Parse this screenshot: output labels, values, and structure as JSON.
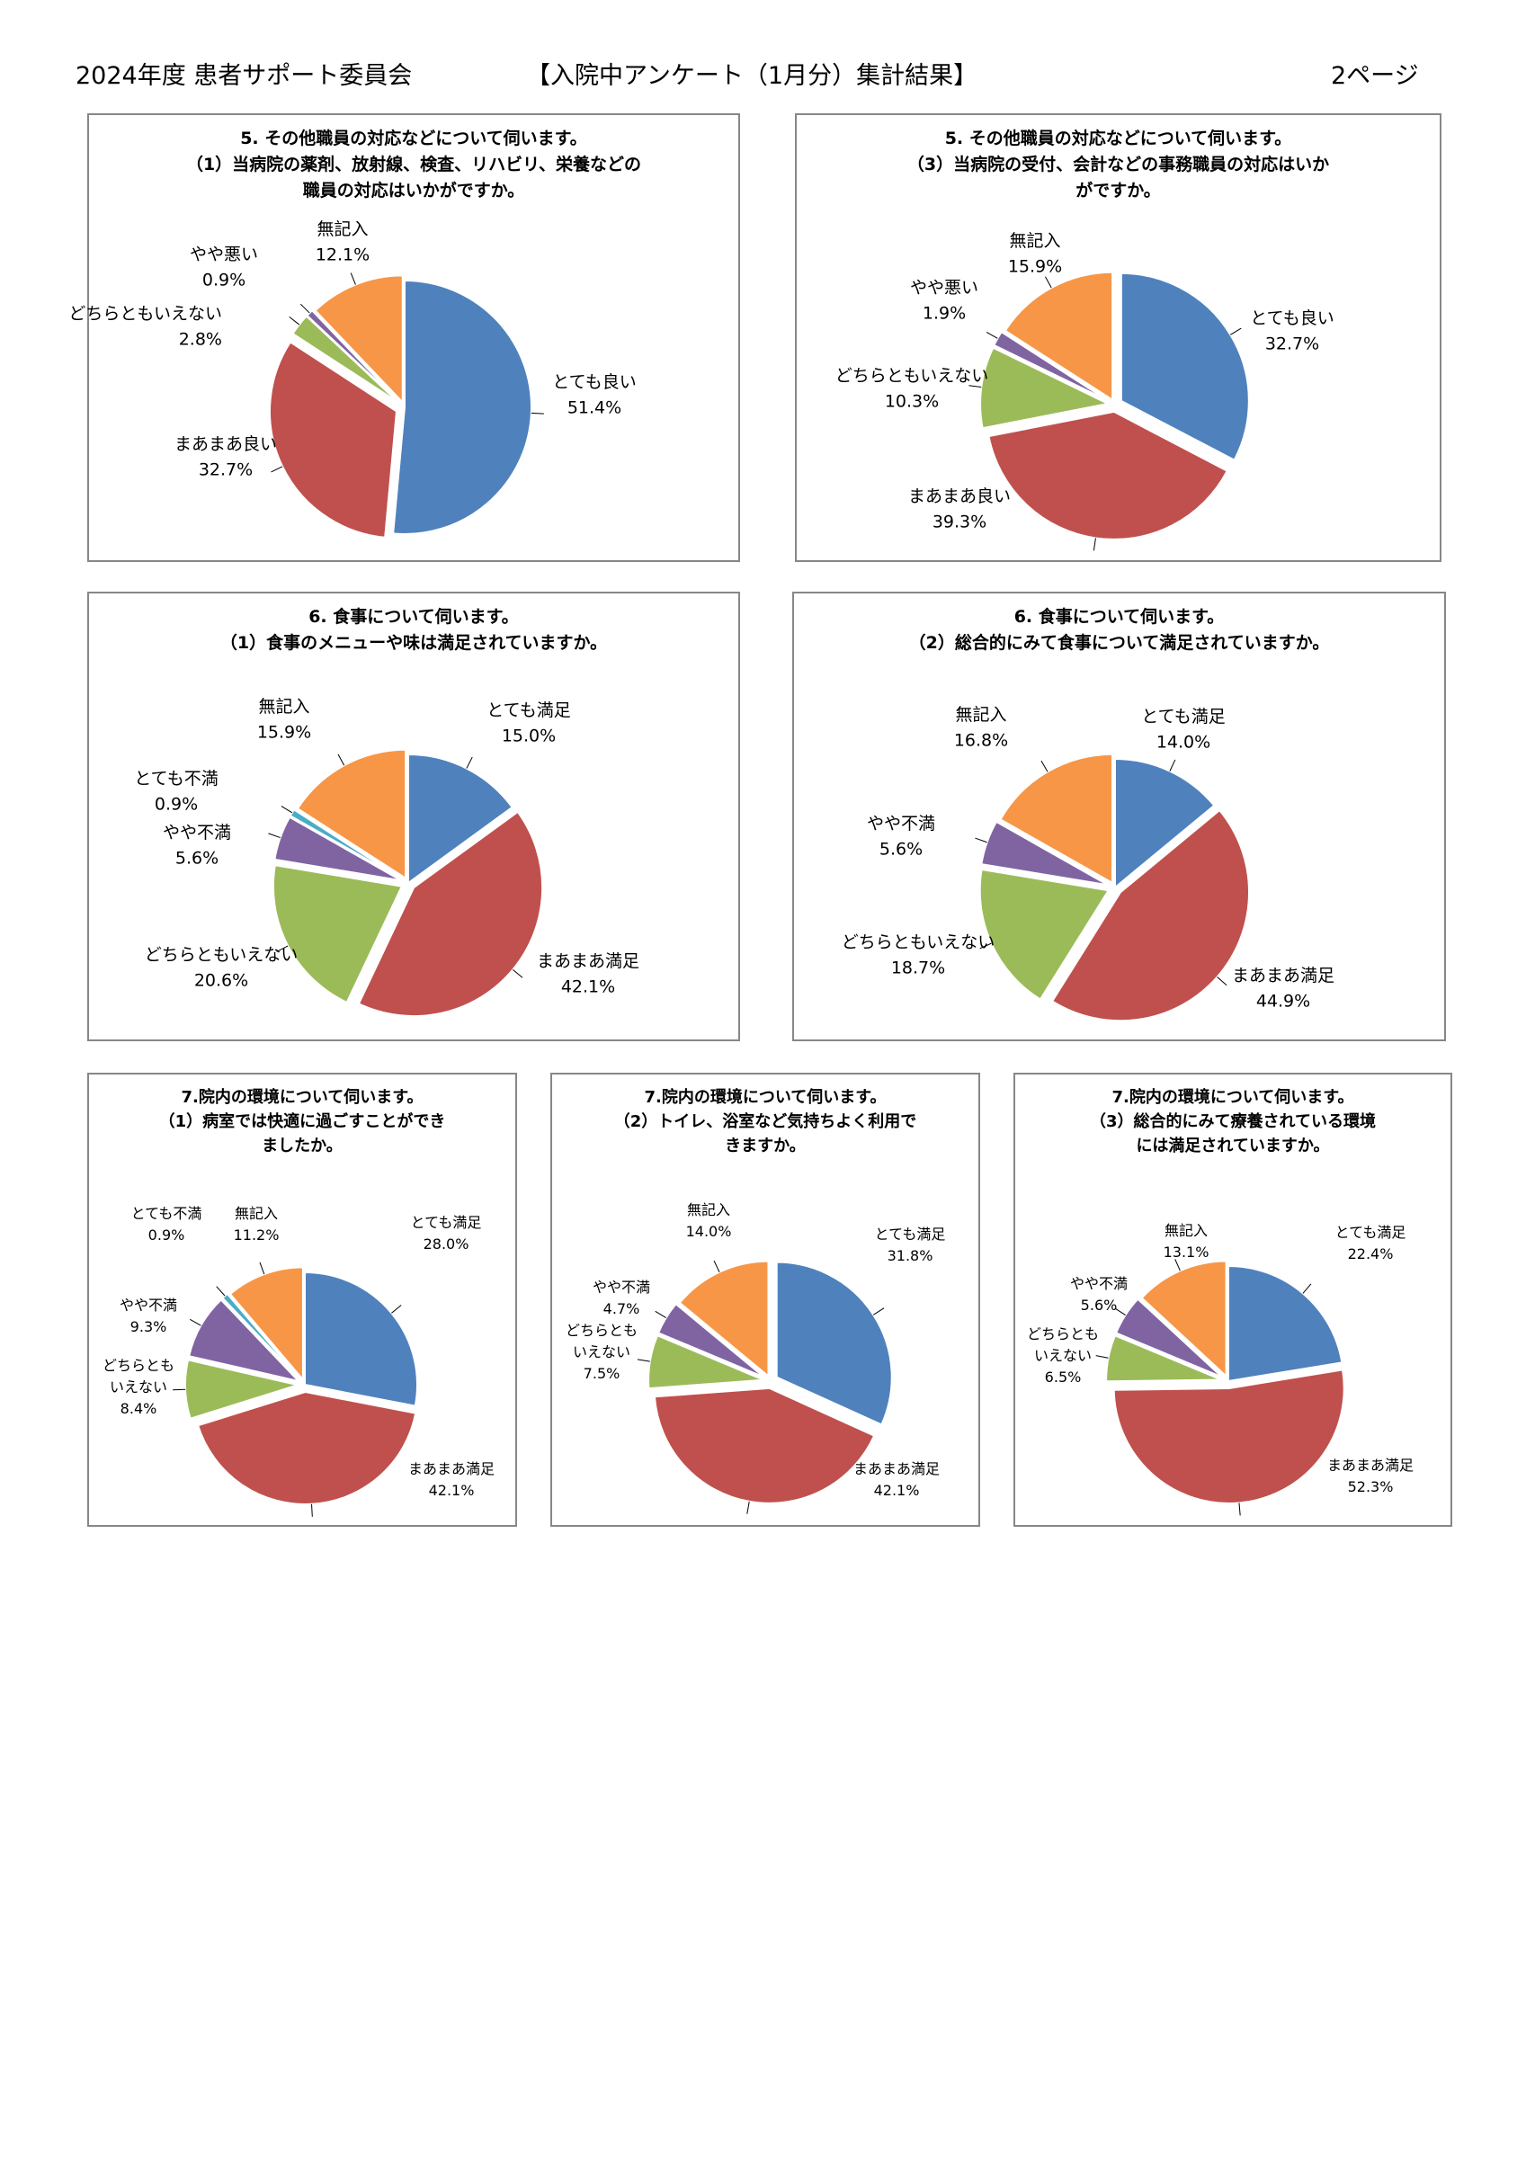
{
  "header": {
    "left": "2024年度 患者サポート委員会",
    "center": "【入院中アンケート（1月分）集計結果】",
    "right": "2ページ"
  },
  "colors": {
    "blue": "#4f81bd",
    "red": "#c0504d",
    "green": "#9bbb59",
    "purple": "#8064a2",
    "cyan": "#4bacc6",
    "orange": "#f79646",
    "border": "#878787"
  },
  "chart_data": [
    {
      "id": "c1",
      "type": "pie",
      "title_lines": [
        "5. その他職員の対応などについて伺います。",
        "（1）当病院の薬剤、放射線、検査、リハビリ、栄養などの",
        "職員の対応はいかがですか。"
      ],
      "slices": [
        {
          "label": "とても良い",
          "pct": "51.4%",
          "value": 51.4,
          "color": "blue"
        },
        {
          "label": "まあまあ良い",
          "pct": "32.7%",
          "value": 32.7,
          "color": "red"
        },
        {
          "label": "どちらともいえない",
          "pct": "2.8%",
          "value": 2.8,
          "color": "green"
        },
        {
          "label": "やや悪い",
          "pct": "0.9%",
          "value": 0.9,
          "color": "purple"
        },
        {
          "label": "無記入",
          "pct": "12.1%",
          "value": 12.1,
          "color": "orange"
        }
      ]
    },
    {
      "id": "c2",
      "type": "pie",
      "title_lines": [
        "5. その他職員の対応などについて伺います。",
        "（3）当病院の受付、会計などの事務職員の対応はいか",
        "がですか。"
      ],
      "slices": [
        {
          "label": "とても良い",
          "pct": "32.7%",
          "value": 32.7,
          "color": "blue"
        },
        {
          "label": "まあまあ良い",
          "pct": "39.3%",
          "value": 39.3,
          "color": "red"
        },
        {
          "label": "どちらともいえない",
          "pct": "10.3%",
          "value": 10.3,
          "color": "green"
        },
        {
          "label": "やや悪い",
          "pct": "1.9%",
          "value": 1.9,
          "color": "purple"
        },
        {
          "label": "無記入",
          "pct": "15.9%",
          "value": 15.9,
          "color": "orange"
        }
      ]
    },
    {
      "id": "c3",
      "type": "pie",
      "title_lines": [
        "6. 食事について伺います。",
        "（1）食事のメニューや味は満足されていますか。"
      ],
      "slices": [
        {
          "label": "とても満足",
          "pct": "15.0%",
          "value": 15.0,
          "color": "blue"
        },
        {
          "label": "まあまあ満足",
          "pct": "42.1%",
          "value": 42.1,
          "color": "red"
        },
        {
          "label": "どちらともいえない",
          "pct": "20.6%",
          "value": 20.6,
          "color": "green"
        },
        {
          "label": "やや不満",
          "pct": "5.6%",
          "value": 5.6,
          "color": "purple"
        },
        {
          "label": "とても不満",
          "pct": "0.9%",
          "value": 0.9,
          "color": "cyan"
        },
        {
          "label": "無記入",
          "pct": "15.9%",
          "value": 15.9,
          "color": "orange"
        }
      ]
    },
    {
      "id": "c4",
      "type": "pie",
      "title_lines": [
        "6. 食事について伺います。",
        "（2）総合的にみて食事について満足されていますか。"
      ],
      "slices": [
        {
          "label": "とても満足",
          "pct": "14.0%",
          "value": 14.0,
          "color": "blue"
        },
        {
          "label": "まあまあ満足",
          "pct": "44.9%",
          "value": 44.9,
          "color": "red"
        },
        {
          "label": "どちらともいえない",
          "pct": "18.7%",
          "value": 18.7,
          "color": "green"
        },
        {
          "label": "やや不満",
          "pct": "5.6%",
          "value": 5.6,
          "color": "purple"
        },
        {
          "label": "無記入",
          "pct": "16.8%",
          "value": 16.8,
          "color": "orange"
        }
      ]
    },
    {
      "id": "c5",
      "type": "pie",
      "title_lines": [
        "7.院内の環境について伺います。",
        "（1）病室では快適に過ごすことができ",
        "ましたか。"
      ],
      "slices": [
        {
          "label": "とても満足",
          "pct": "28.0%",
          "value": 28.0,
          "color": "blue"
        },
        {
          "label": "まあまあ満足",
          "pct": "42.1%",
          "value": 42.1,
          "color": "red"
        },
        {
          "label": "どちらとも\nいえない",
          "pct": "8.4%",
          "value": 8.4,
          "color": "green"
        },
        {
          "label": "やや不満",
          "pct": "9.3%",
          "value": 9.3,
          "color": "purple"
        },
        {
          "label": "とても不満",
          "pct": "0.9%",
          "value": 0.9,
          "color": "cyan"
        },
        {
          "label": "無記入",
          "pct": "11.2%",
          "value": 11.2,
          "color": "orange"
        }
      ]
    },
    {
      "id": "c6",
      "type": "pie",
      "title_lines": [
        "7.院内の環境について伺います。",
        "（2）トイレ、浴室など気持ちよく利用で",
        "きますか。"
      ],
      "slices": [
        {
          "label": "とても満足",
          "pct": "31.8%",
          "value": 31.8,
          "color": "blue"
        },
        {
          "label": "まあまあ満足",
          "pct": "42.1%",
          "value": 42.1,
          "color": "red"
        },
        {
          "label": "どちらとも\nいえない",
          "pct": "7.5%",
          "value": 7.5,
          "color": "green"
        },
        {
          "label": "やや不満",
          "pct": "4.7%",
          "value": 4.7,
          "color": "purple"
        },
        {
          "label": "無記入",
          "pct": "14.0%",
          "value": 14.0,
          "color": "orange"
        }
      ]
    },
    {
      "id": "c7",
      "type": "pie",
      "title_lines": [
        "7.院内の環境について伺います。",
        "（3）総合的にみて療養されている環境",
        "には満足されていますか。"
      ],
      "slices": [
        {
          "label": "とても満足",
          "pct": "22.4%",
          "value": 22.4,
          "color": "blue"
        },
        {
          "label": "まあまあ満足",
          "pct": "52.3%",
          "value": 52.3,
          "color": "red"
        },
        {
          "label": "どちらとも\nいえない",
          "pct": "6.5%",
          "value": 6.5,
          "color": "green"
        },
        {
          "label": "やや不満",
          "pct": "5.6%",
          "value": 5.6,
          "color": "purple"
        },
        {
          "label": "無記入",
          "pct": "13.1%",
          "value": 13.1,
          "color": "orange"
        }
      ]
    }
  ]
}
